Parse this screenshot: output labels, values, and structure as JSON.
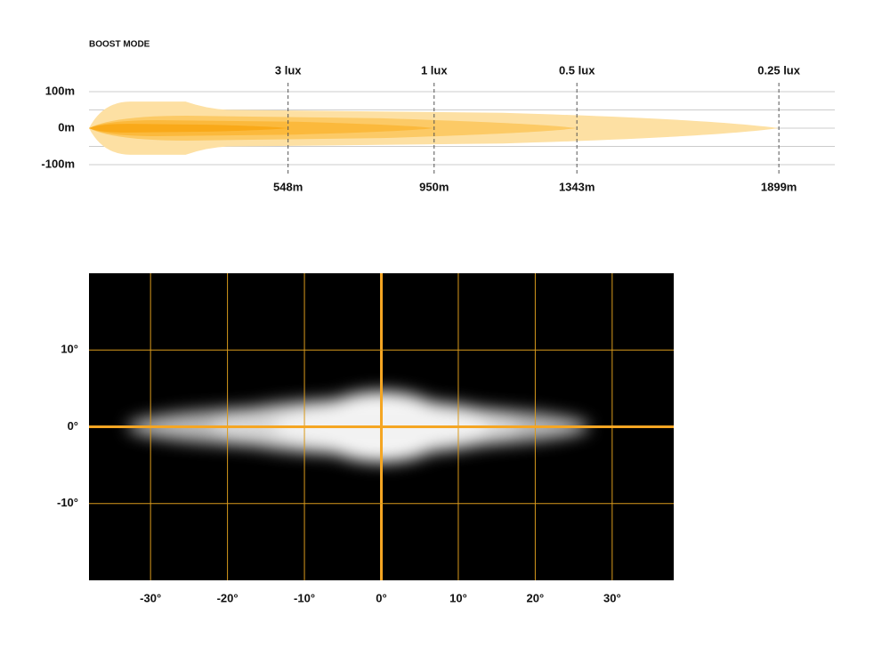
{
  "chart_data": [
    {
      "type": "beam-profile",
      "title": "BOOST MODE",
      "xlim": [
        0,
        2053
      ],
      "ylim": [
        -100,
        100
      ],
      "yticks": [
        {
          "value": 100,
          "label": "100m"
        },
        {
          "value": 0,
          "label": "0m"
        },
        {
          "value": -100,
          "label": "-100m"
        }
      ],
      "minor_gridlines": [
        50,
        -50
      ],
      "markers": [
        {
          "lux": "3 lux",
          "distance": 548,
          "distance_label": "548m",
          "half_width": 12,
          "color": "#f9a919"
        },
        {
          "lux": "1 lux",
          "distance": 950,
          "distance_label": "950m",
          "half_width": 22,
          "color": "#fbb93c"
        },
        {
          "lux": "0.5 lux",
          "distance": 1343,
          "distance_label": "1343m",
          "half_width": 34,
          "color": "#fcca66"
        },
        {
          "lux": "0.25 lux",
          "distance": 1899,
          "distance_label": "1899m",
          "half_width": 56,
          "color": "#fde0a3"
        }
      ]
    },
    {
      "type": "beam-pattern",
      "xlim": [
        -38,
        38
      ],
      "ylim": [
        -20,
        20
      ],
      "xticks": [
        {
          "value": -30,
          "label": "-30°"
        },
        {
          "value": -20,
          "label": "-20°"
        },
        {
          "value": -10,
          "label": "-10°"
        },
        {
          "value": 0,
          "label": "0°"
        },
        {
          "value": 10,
          "label": "10°"
        },
        {
          "value": 20,
          "label": "20°"
        },
        {
          "value": 30,
          "label": "30°"
        }
      ],
      "yticks": [
        {
          "value": 10,
          "label": "10°"
        },
        {
          "value": 0,
          "label": "0°"
        },
        {
          "value": -10,
          "label": "-10°"
        }
      ],
      "grid_color": "#d99a1c",
      "axis_color": "#f5a623"
    }
  ]
}
